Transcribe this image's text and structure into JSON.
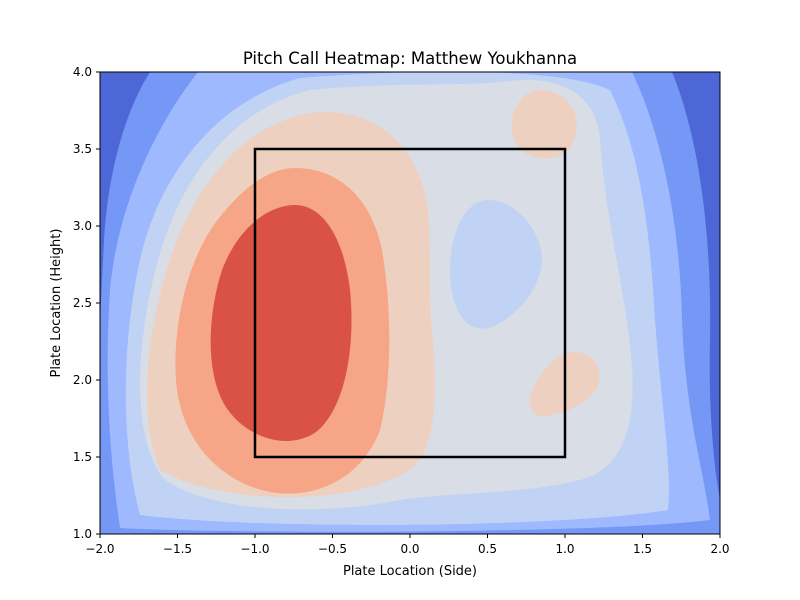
{
  "chart_data": {
    "type": "heatmap",
    "subtype": "filled-contour",
    "title": "Pitch Call Heatmap: Matthew Youkhanna",
    "xlabel": "Plate Location (Side)",
    "ylabel": "Plate Location (Height)",
    "xlim": [
      -2.0,
      2.0
    ],
    "ylim": [
      1.0,
      4.0
    ],
    "x_ticks": [
      -2.0,
      -1.5,
      -1.0,
      -0.5,
      0.0,
      0.5,
      1.0,
      1.5,
      2.0
    ],
    "y_ticks": [
      1.0,
      1.5,
      2.0,
      2.5,
      3.0,
      3.5,
      4.0
    ],
    "x_tick_labels": [
      "−2.0",
      "−1.5",
      "−1.0",
      "−0.5",
      "0.0",
      "0.5",
      "1.0",
      "1.5",
      "2.0"
    ],
    "y_tick_labels": [
      "1.0",
      "1.5",
      "2.0",
      "2.5",
      "3.0",
      "3.5",
      "4.0"
    ],
    "grid": false,
    "colormap": "coolwarm",
    "contour_colors": [
      "#4d68d6",
      "#7597f5",
      "#9eb9fd",
      "#c0d3f5",
      "#d9dde5",
      "#eed0c0",
      "#f6a586",
      "#da5244"
    ],
    "strike_zone": {
      "x": [
        -1.0,
        1.0
      ],
      "y": [
        1.5,
        3.5
      ],
      "color": "#000000"
    }
  }
}
